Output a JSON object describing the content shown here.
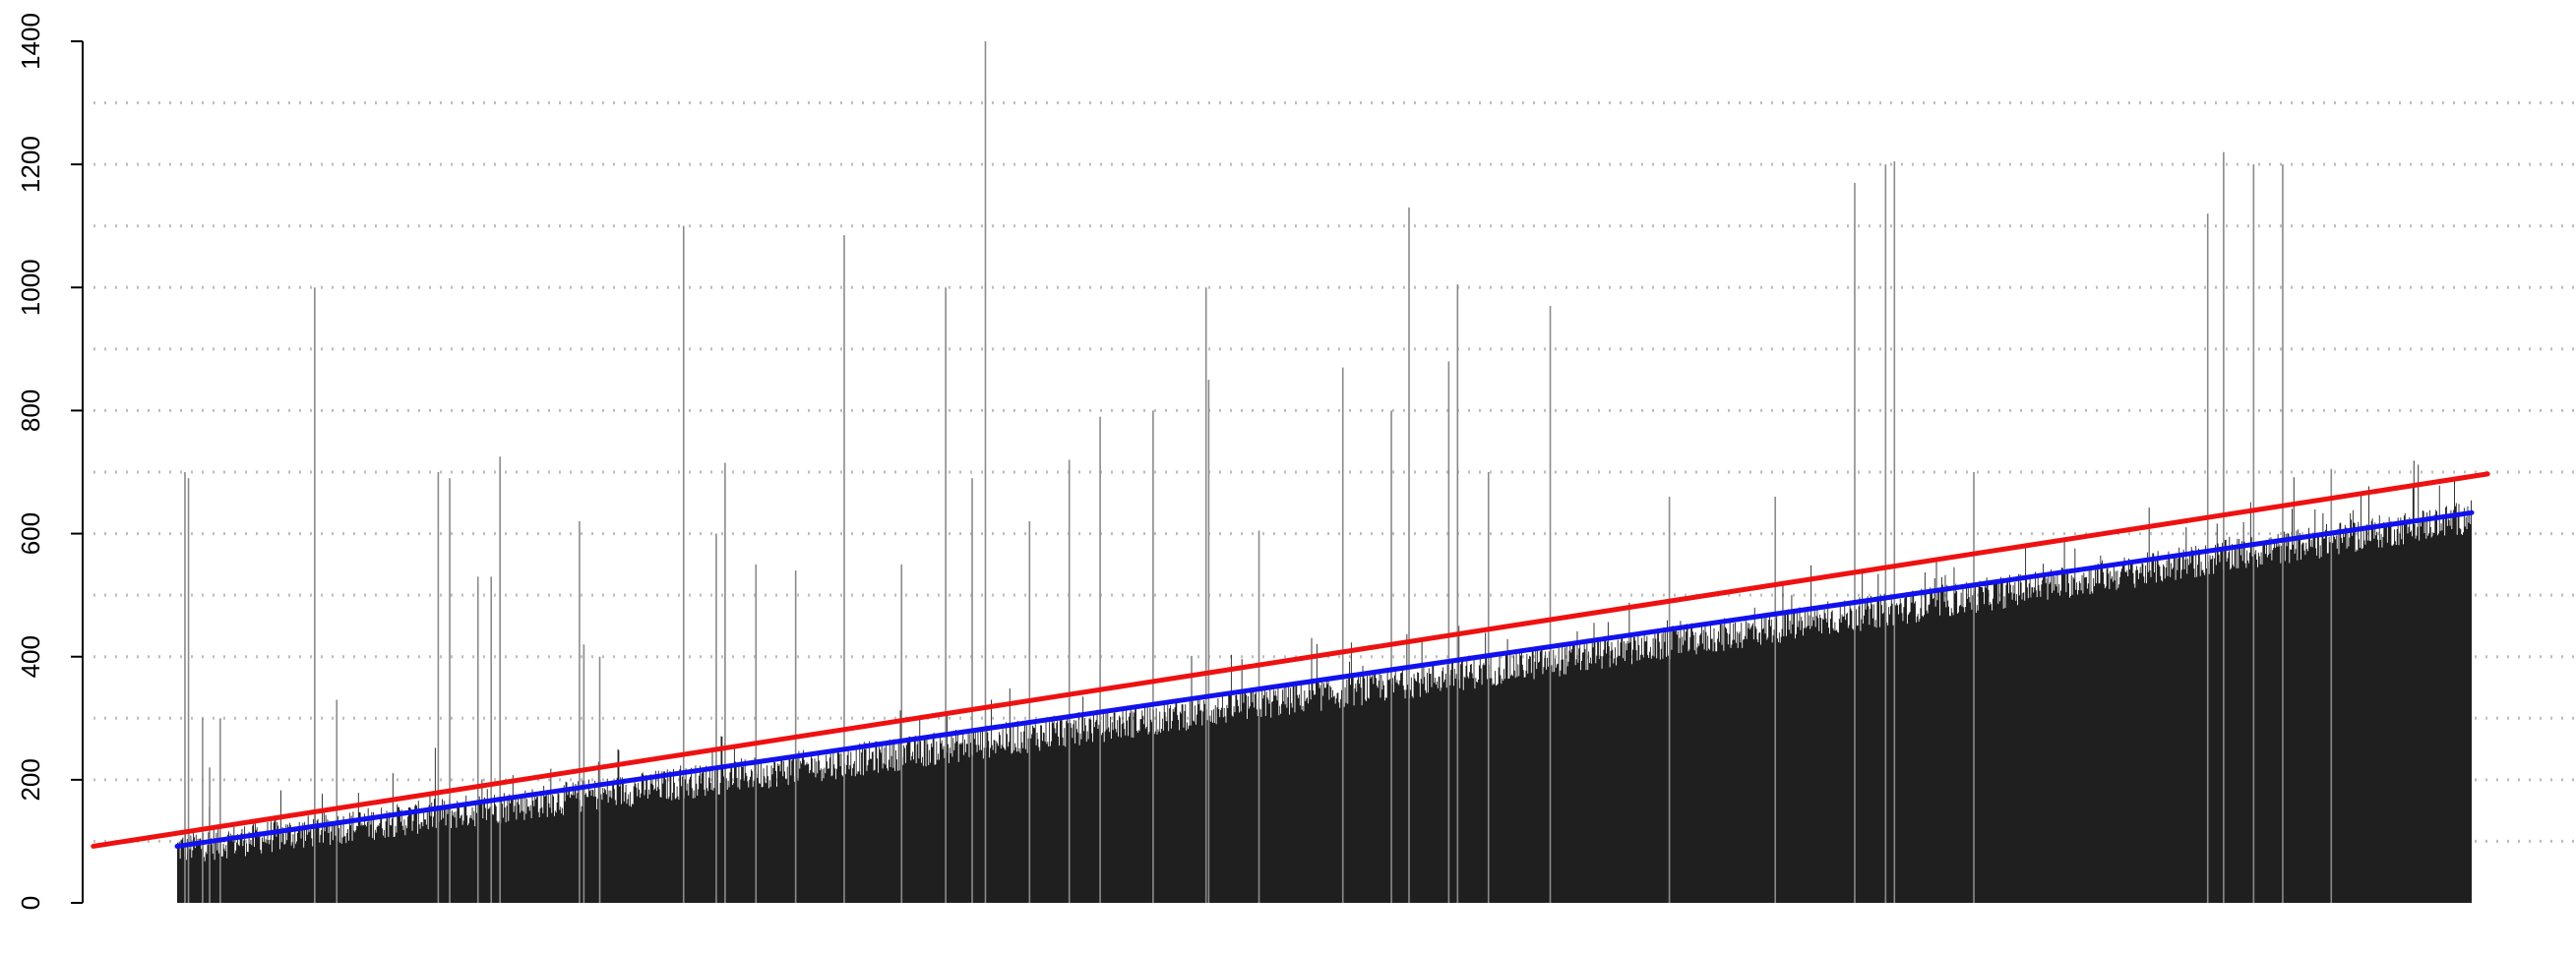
{
  "chart_data": {
    "type": "bar",
    "title": "",
    "xlabel": "",
    "ylabel": "",
    "ylim": [
      0,
      1400
    ],
    "y_ticks": [
      0,
      200,
      400,
      600,
      800,
      1000,
      1200,
      1400
    ],
    "y_tick_labels": [
      "0",
      "200",
      "400",
      "600",
      "800",
      "1000",
      "1200",
      "1400"
    ],
    "grid": {
      "horizontal": true,
      "style": "dotted",
      "step": 100,
      "color": "#bdbdbd"
    },
    "bar_count": 2600,
    "bar_color": "#1f1f1f",
    "spike_color": "#8a8a8a",
    "baseline_trend": {
      "start": 92,
      "end": 630,
      "shape": "roughly linear, slight curve"
    },
    "spikes": [
      {
        "index": 8,
        "value": 700
      },
      {
        "index": 12,
        "value": 690
      },
      {
        "index": 28,
        "value": 300
      },
      {
        "index": 36,
        "value": 220
      },
      {
        "index": 48,
        "value": 300
      },
      {
        "index": 155,
        "value": 1000
      },
      {
        "index": 180,
        "value": 330
      },
      {
        "index": 295,
        "value": 700
      },
      {
        "index": 308,
        "value": 690
      },
      {
        "index": 340,
        "value": 530
      },
      {
        "index": 355,
        "value": 530
      },
      {
        "index": 365,
        "value": 725
      },
      {
        "index": 455,
        "value": 620
      },
      {
        "index": 460,
        "value": 420
      },
      {
        "index": 478,
        "value": 400
      },
      {
        "index": 573,
        "value": 1100
      },
      {
        "index": 610,
        "value": 600
      },
      {
        "index": 620,
        "value": 715
      },
      {
        "index": 655,
        "value": 550
      },
      {
        "index": 700,
        "value": 540
      },
      {
        "index": 755,
        "value": 1085
      },
      {
        "index": 820,
        "value": 550
      },
      {
        "index": 870,
        "value": 1000
      },
      {
        "index": 900,
        "value": 690
      },
      {
        "index": 915,
        "value": 1400
      },
      {
        "index": 965,
        "value": 620
      },
      {
        "index": 1010,
        "value": 720
      },
      {
        "index": 1045,
        "value": 790
      },
      {
        "index": 1105,
        "value": 800
      },
      {
        "index": 1165,
        "value": 1000
      },
      {
        "index": 1168,
        "value": 850
      },
      {
        "index": 1225,
        "value": 605
      },
      {
        "index": 1320,
        "value": 870
      },
      {
        "index": 1375,
        "value": 800
      },
      {
        "index": 1395,
        "value": 1130
      },
      {
        "index": 1440,
        "value": 880
      },
      {
        "index": 1450,
        "value": 1005
      },
      {
        "index": 1485,
        "value": 700
      },
      {
        "index": 1555,
        "value": 970
      },
      {
        "index": 1690,
        "value": 660
      },
      {
        "index": 1810,
        "value": 660
      },
      {
        "index": 1900,
        "value": 1170
      },
      {
        "index": 1935,
        "value": 1200
      },
      {
        "index": 1945,
        "value": 1205
      },
      {
        "index": 2035,
        "value": 700
      },
      {
        "index": 2300,
        "value": 1120
      },
      {
        "index": 2318,
        "value": 1220
      },
      {
        "index": 2352,
        "value": 1200
      },
      {
        "index": 2385,
        "value": 1200
      },
      {
        "index": 2440,
        "value": 705
      }
    ],
    "dips": [
      {
        "index": 1800,
        "value": 150
      },
      {
        "index": 2205,
        "value": 160
      }
    ],
    "series": [
      {
        "type": "trend-line",
        "color": "#ee1111",
        "x0": -95,
        "y0": 92,
        "x1": 2618,
        "y1": 697
      },
      {
        "type": "trend-line",
        "color": "#1111ee",
        "x0": 0,
        "y0": 92,
        "x1": 2600,
        "y1": 634
      }
    ]
  }
}
